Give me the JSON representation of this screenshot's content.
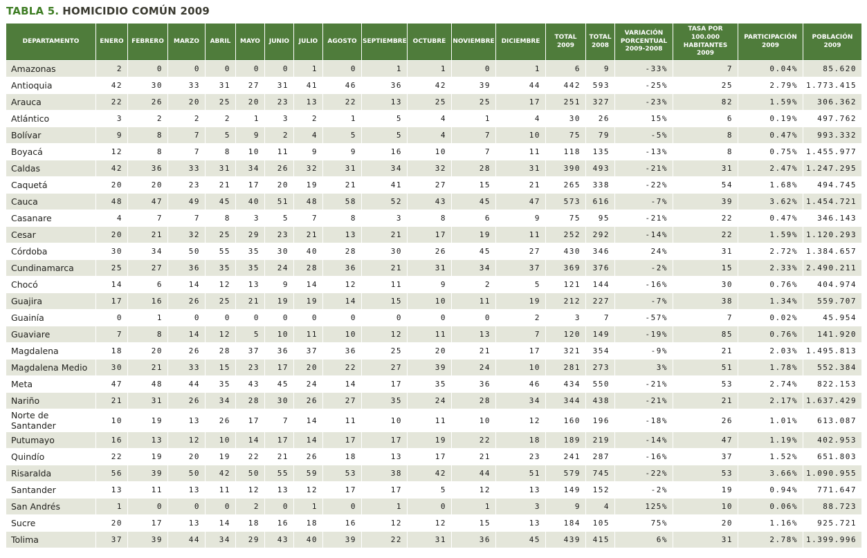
{
  "title": {
    "prefix": "TABLA 5.",
    "main": "HOMICIDIO COMÚN 2009"
  },
  "colors": {
    "header_bg": "#4f7c3b",
    "alt_row_bg": "#e4e6da",
    "title_accent": "#3e7d24",
    "title_text": "#3a3a30"
  },
  "table": {
    "columns": [
      "DEPARTAMENTO",
      "ENERO",
      "FEBRERO",
      "MARZO",
      "ABRIL",
      "MAYO",
      "JUNIO",
      "JULIO",
      "AGOSTO",
      "SEPTIEMBRE",
      "OCTUBRE",
      "NOVIEMBRE",
      "DICIEMBRE",
      "TOTAL\n2009",
      "TOTAL\n2008",
      "VARIACIÓN\nPORCENTUAL\n2009-2008",
      "TASA POR 100.000\nHABITANTES 2009",
      "PARTICIPACIÓN\n2009",
      "POBLACIÓN\n2009"
    ],
    "rows": [
      [
        "Amazonas",
        "2",
        "0",
        "0",
        "0",
        "0",
        "0",
        "1",
        "0",
        "1",
        "1",
        "0",
        "1",
        "6",
        "9",
        "-33%",
        "7",
        "0.04%",
        "85.620"
      ],
      [
        "Antioquia",
        "42",
        "30",
        "33",
        "31",
        "27",
        "31",
        "41",
        "46",
        "36",
        "42",
        "39",
        "44",
        "442",
        "593",
        "-25%",
        "25",
        "2.79%",
        "1.773.415"
      ],
      [
        "Arauca",
        "22",
        "26",
        "20",
        "25",
        "20",
        "23",
        "13",
        "22",
        "13",
        "25",
        "25",
        "17",
        "251",
        "327",
        "-23%",
        "82",
        "1.59%",
        "306.362"
      ],
      [
        "Atlántico",
        "3",
        "2",
        "2",
        "2",
        "1",
        "3",
        "2",
        "1",
        "5",
        "4",
        "1",
        "4",
        "30",
        "26",
        "15%",
        "6",
        "0.19%",
        "497.762"
      ],
      [
        "Bolívar",
        "9",
        "8",
        "7",
        "5",
        "9",
        "2",
        "4",
        "5",
        "5",
        "4",
        "7",
        "10",
        "75",
        "79",
        "-5%",
        "8",
        "0.47%",
        "993.332"
      ],
      [
        "Boyacá",
        "12",
        "8",
        "7",
        "8",
        "10",
        "11",
        "9",
        "9",
        "16",
        "10",
        "7",
        "11",
        "118",
        "135",
        "-13%",
        "8",
        "0.75%",
        "1.455.977"
      ],
      [
        "Caldas",
        "42",
        "36",
        "33",
        "31",
        "34",
        "26",
        "32",
        "31",
        "34",
        "32",
        "28",
        "31",
        "390",
        "493",
        "-21%",
        "31",
        "2.47%",
        "1.247.295"
      ],
      [
        "Caquetá",
        "20",
        "20",
        "23",
        "21",
        "17",
        "20",
        "19",
        "21",
        "41",
        "27",
        "15",
        "21",
        "265",
        "338",
        "-22%",
        "54",
        "1.68%",
        "494.745"
      ],
      [
        "Cauca",
        "48",
        "47",
        "49",
        "45",
        "40",
        "51",
        "48",
        "58",
        "52",
        "43",
        "45",
        "47",
        "573",
        "616",
        "-7%",
        "39",
        "3.62%",
        "1.454.721"
      ],
      [
        "Casanare",
        "4",
        "7",
        "7",
        "8",
        "3",
        "5",
        "7",
        "8",
        "3",
        "8",
        "6",
        "9",
        "75",
        "95",
        "-21%",
        "22",
        "0.47%",
        "346.143"
      ],
      [
        "Cesar",
        "20",
        "21",
        "32",
        "25",
        "29",
        "23",
        "21",
        "13",
        "21",
        "17",
        "19",
        "11",
        "252",
        "292",
        "-14%",
        "22",
        "1.59%",
        "1.120.293"
      ],
      [
        "Córdoba",
        "30",
        "34",
        "50",
        "55",
        "35",
        "30",
        "40",
        "28",
        "30",
        "26",
        "45",
        "27",
        "430",
        "346",
        "24%",
        "31",
        "2.72%",
        "1.384.657"
      ],
      [
        "Cundinamarca",
        "25",
        "27",
        "36",
        "35",
        "35",
        "24",
        "28",
        "36",
        "21",
        "31",
        "34",
        "37",
        "369",
        "376",
        "-2%",
        "15",
        "2.33%",
        "2.490.211"
      ],
      [
        "Chocó",
        "14",
        "6",
        "14",
        "12",
        "13",
        "9",
        "14",
        "12",
        "11",
        "9",
        "2",
        "5",
        "121",
        "144",
        "-16%",
        "30",
        "0.76%",
        "404.974"
      ],
      [
        "Guajira",
        "17",
        "16",
        "26",
        "25",
        "21",
        "19",
        "19",
        "14",
        "15",
        "10",
        "11",
        "19",
        "212",
        "227",
        "-7%",
        "38",
        "1.34%",
        "559.707"
      ],
      [
        "Guainía",
        "0",
        "1",
        "0",
        "0",
        "0",
        "0",
        "0",
        "0",
        "0",
        "0",
        "0",
        "2",
        "3",
        "7",
        "-57%",
        "7",
        "0.02%",
        "45.954"
      ],
      [
        "Guaviare",
        "7",
        "8",
        "14",
        "12",
        "5",
        "10",
        "11",
        "10",
        "12",
        "11",
        "13",
        "7",
        "120",
        "149",
        "-19%",
        "85",
        "0.76%",
        "141.920"
      ],
      [
        "Magdalena",
        "18",
        "20",
        "26",
        "28",
        "37",
        "36",
        "37",
        "36",
        "25",
        "20",
        "21",
        "17",
        "321",
        "354",
        "-9%",
        "21",
        "2.03%",
        "1.495.813"
      ],
      [
        "Magdalena Medio",
        "30",
        "21",
        "33",
        "15",
        "23",
        "17",
        "20",
        "22",
        "27",
        "39",
        "24",
        "10",
        "281",
        "273",
        "3%",
        "51",
        "1.78%",
        "552.384"
      ],
      [
        "Meta",
        "47",
        "48",
        "44",
        "35",
        "43",
        "45",
        "24",
        "14",
        "17",
        "35",
        "36",
        "46",
        "434",
        "550",
        "-21%",
        "53",
        "2.74%",
        "822.153"
      ],
      [
        "Nariño",
        "21",
        "31",
        "26",
        "34",
        "28",
        "30",
        "26",
        "27",
        "35",
        "24",
        "28",
        "34",
        "344",
        "438",
        "-21%",
        "21",
        "2.17%",
        "1.637.429"
      ],
      [
        "Norte de Santander",
        "10",
        "19",
        "13",
        "26",
        "17",
        "7",
        "14",
        "11",
        "10",
        "11",
        "10",
        "12",
        "160",
        "196",
        "-18%",
        "26",
        "1.01%",
        "613.087"
      ],
      [
        "Putumayo",
        "16",
        "13",
        "12",
        "10",
        "14",
        "17",
        "14",
        "17",
        "17",
        "19",
        "22",
        "18",
        "189",
        "219",
        "-14%",
        "47",
        "1.19%",
        "402.953"
      ],
      [
        "Quindío",
        "22",
        "19",
        "20",
        "19",
        "22",
        "21",
        "26",
        "18",
        "13",
        "17",
        "21",
        "23",
        "241",
        "287",
        "-16%",
        "37",
        "1.52%",
        "651.803"
      ],
      [
        "Risaralda",
        "56",
        "39",
        "50",
        "42",
        "50",
        "55",
        "59",
        "53",
        "38",
        "42",
        "44",
        "51",
        "579",
        "745",
        "-22%",
        "53",
        "3.66%",
        "1.090.955"
      ],
      [
        "Santander",
        "13",
        "11",
        "13",
        "11",
        "12",
        "13",
        "12",
        "17",
        "17",
        "5",
        "12",
        "13",
        "149",
        "152",
        "-2%",
        "19",
        "0.94%",
        "771.647"
      ],
      [
        "San Andrés",
        "1",
        "0",
        "0",
        "0",
        "2",
        "0",
        "1",
        "0",
        "1",
        "0",
        "1",
        "3",
        "9",
        "4",
        "125%",
        "10",
        "0.06%",
        "88.723"
      ],
      [
        "Sucre",
        "20",
        "17",
        "13",
        "14",
        "18",
        "16",
        "18",
        "16",
        "12",
        "12",
        "15",
        "13",
        "184",
        "105",
        "75%",
        "20",
        "1.16%",
        "925.721"
      ],
      [
        "Tolima",
        "37",
        "39",
        "44",
        "34",
        "29",
        "43",
        "40",
        "39",
        "22",
        "31",
        "36",
        "45",
        "439",
        "415",
        "6%",
        "31",
        "2.78%",
        "1.399.996"
      ]
    ]
  }
}
